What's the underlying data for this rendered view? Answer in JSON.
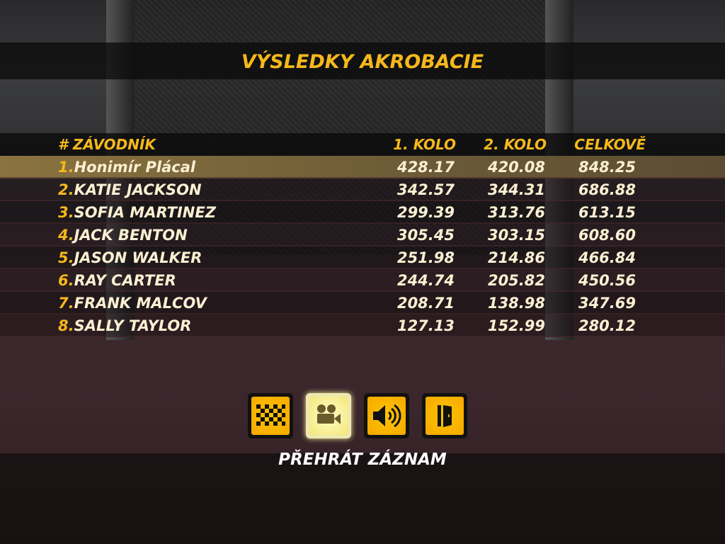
{
  "title": "VÝSLEDKY AKROBACIE",
  "columns": {
    "pos": "#",
    "name": "ZÁVODNÍK",
    "round1": "1. KOLO",
    "round2": "2. KOLO",
    "total": "CELKOVĚ"
  },
  "rows": [
    {
      "pos": "1.",
      "name": "Honimír Plácal",
      "r1": "428.17",
      "r2": "420.08",
      "total": "848.25"
    },
    {
      "pos": "2.",
      "name": "KATIE JACKSON",
      "r1": "342.57",
      "r2": "344.31",
      "total": "686.88"
    },
    {
      "pos": "3.",
      "name": "SOFIA MARTINEZ",
      "r1": "299.39",
      "r2": "313.76",
      "total": "613.15"
    },
    {
      "pos": "4.",
      "name": "JACK BENTON",
      "r1": "305.45",
      "r2": "303.15",
      "total": "608.60"
    },
    {
      "pos": "5.",
      "name": "JASON WALKER",
      "r1": "251.98",
      "r2": "214.86",
      "total": "466.84"
    },
    {
      "pos": "6.",
      "name": "RAY CARTER",
      "r1": "244.74",
      "r2": "205.82",
      "total": "450.56"
    },
    {
      "pos": "7.",
      "name": "FRANK MALCOV",
      "r1": "208.71",
      "r2": "138.98",
      "total": "347.69"
    },
    {
      "pos": "8.",
      "name": "SALLY TAYLOR",
      "r1": "127.13",
      "r2": "152.99",
      "total": "280.12"
    }
  ],
  "buttons": [
    {
      "icon": "checkered-flag-icon"
    },
    {
      "icon": "camera-icon",
      "active": true
    },
    {
      "icon": "speaker-icon"
    },
    {
      "icon": "exit-door-icon"
    }
  ],
  "caption": "PŘEHRÁT ZÁZNAM",
  "colors": {
    "accent": "#f5b81c",
    "selected_row": "#8a7340",
    "text": "#fbf0d2"
  }
}
